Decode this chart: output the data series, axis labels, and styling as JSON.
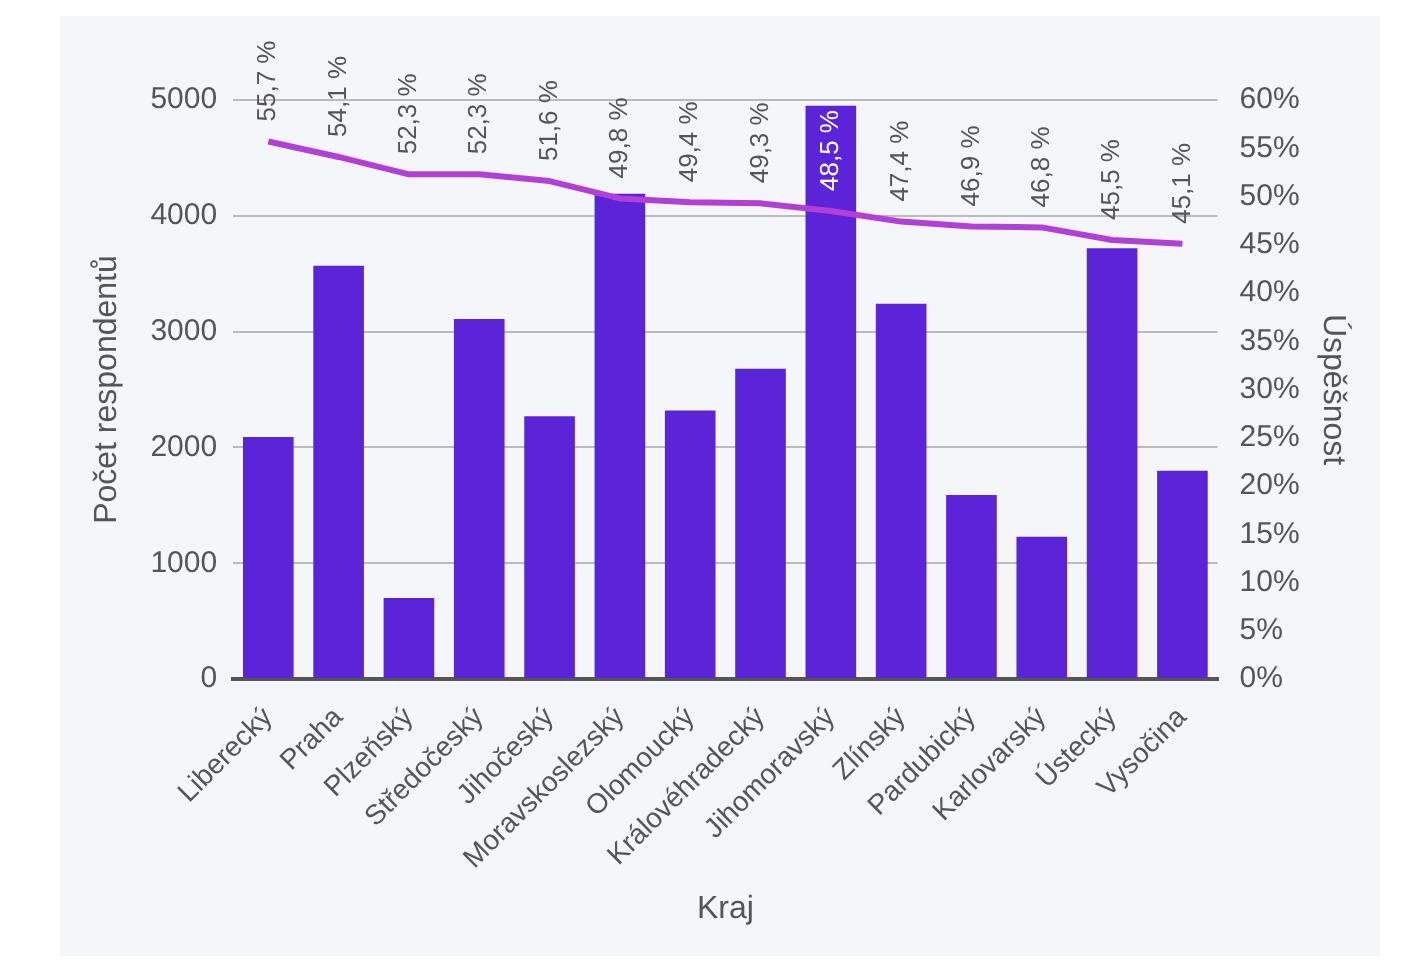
{
  "chart_data": {
    "type": "bar",
    "xlabel": "Kraj",
    "ylabel": "Počet respondentů",
    "y2label": "Úspěšnost",
    "categories": [
      "Liberecký",
      "Praha",
      "Plzeňský",
      "Středočeský",
      "Jihočeský",
      "Moravskoslezský",
      "Olomoucký",
      "Královéhradecký",
      "Jihomoravský",
      "Zlínský",
      "Pardubický",
      "Karlovarský",
      "Ústecký",
      "Vysočina"
    ],
    "series": [
      {
        "color": "#5b24d9",
        "values": [
          2090,
          3570,
          700,
          3110,
          2270,
          4190,
          2320,
          2680,
          4950,
          3240,
          1590,
          1230,
          3720,
          1800
        ]
      },
      {
        "type": "line",
        "axis": "y2",
        "color": "#b23fd6",
        "marker": "none",
        "values": [
          55.7,
          54.1,
          52.3,
          52.3,
          51.6,
          49.8,
          49.4,
          49.3,
          48.5,
          47.4,
          46.9,
          46.8,
          45.5,
          45.1
        ],
        "value_labels": [
          "55,7 %",
          "54,1 %",
          "52,3 %",
          "52,3 %",
          "51,6 %",
          "49,8 %",
          "49,4 %",
          "49,3 %",
          "48,5 %",
          "47,4 %",
          "46,9 %",
          "46,8 %",
          "45,5 %",
          "45,1 %"
        ]
      }
    ],
    "ylim": [
      0,
      5000
    ],
    "yticks": [
      0,
      1000,
      2000,
      3000,
      4000,
      5000
    ],
    "y2lim": [
      0,
      60
    ],
    "y2ticks": [
      {
        "value": 0,
        "label": "0%"
      },
      {
        "value": 5,
        "label": "5%"
      },
      {
        "value": 10,
        "label": "10%"
      },
      {
        "value": 15,
        "label": "15%"
      },
      {
        "value": 20,
        "label": "20%"
      },
      {
        "value": 25,
        "label": "25%"
      },
      {
        "value": 30,
        "label": "30%"
      },
      {
        "value": 35,
        "label": "35%"
      },
      {
        "value": 40,
        "label": "40%"
      },
      {
        "value": 45,
        "label": "45%"
      },
      {
        "value": 50,
        "label": "50%"
      },
      {
        "value": 55,
        "label": "55%"
      },
      {
        "value": 60,
        "label": "60%"
      }
    ],
    "grid": "y",
    "legend": false
  }
}
